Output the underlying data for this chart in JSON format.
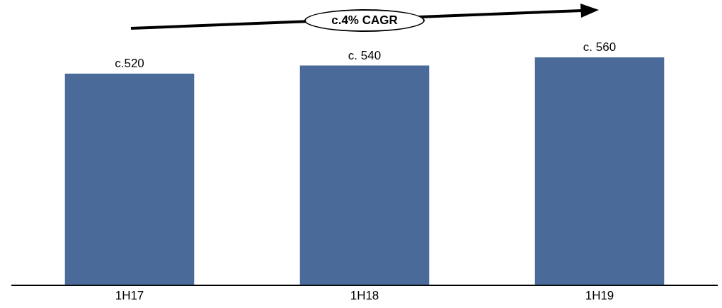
{
  "chart_data": {
    "type": "bar",
    "categories": [
      "1H17",
      "1H18",
      "1H19"
    ],
    "values": [
      520,
      540,
      560
    ],
    "value_labels": [
      "c.520",
      "c. 540",
      "c. 560"
    ],
    "color": "#4a6b9a",
    "grid": false,
    "legend": false,
    "tick_labels": "x",
    "annotations": [
      "c.4% CAGR"
    ]
  }
}
